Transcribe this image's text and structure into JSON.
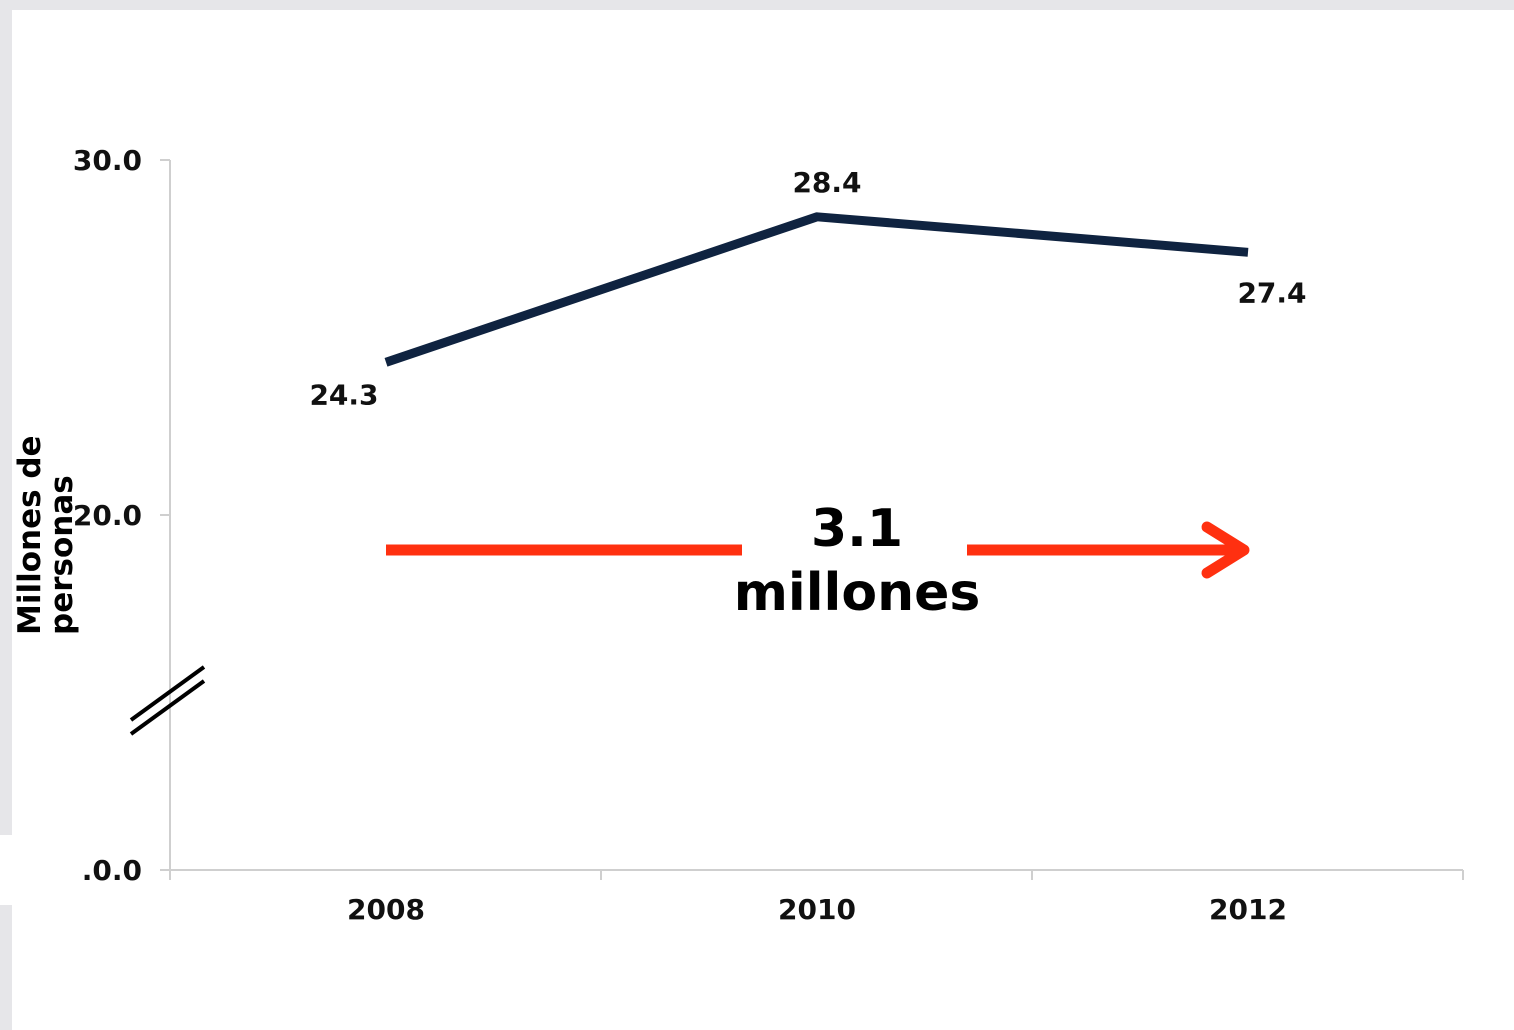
{
  "chart_data": {
    "type": "line",
    "x": [
      "2008",
      "2010",
      "2012"
    ],
    "series": [
      {
        "values": [
          24.3,
          28.4,
          27.4
        ],
        "color": "#0f2340"
      }
    ],
    "data_labels": [
      "24.3",
      "28.4",
      "27.4"
    ],
    "y_tick_labels": [
      "30.0",
      "20.0",
      ".0.0"
    ],
    "ylabel_line1": "Millones de",
    "ylabel_line2": "personas",
    "axis_break": true,
    "annotation": {
      "value": "3.1",
      "unit": "millones",
      "arrow_color": "#ff3010"
    },
    "grid": false
  }
}
